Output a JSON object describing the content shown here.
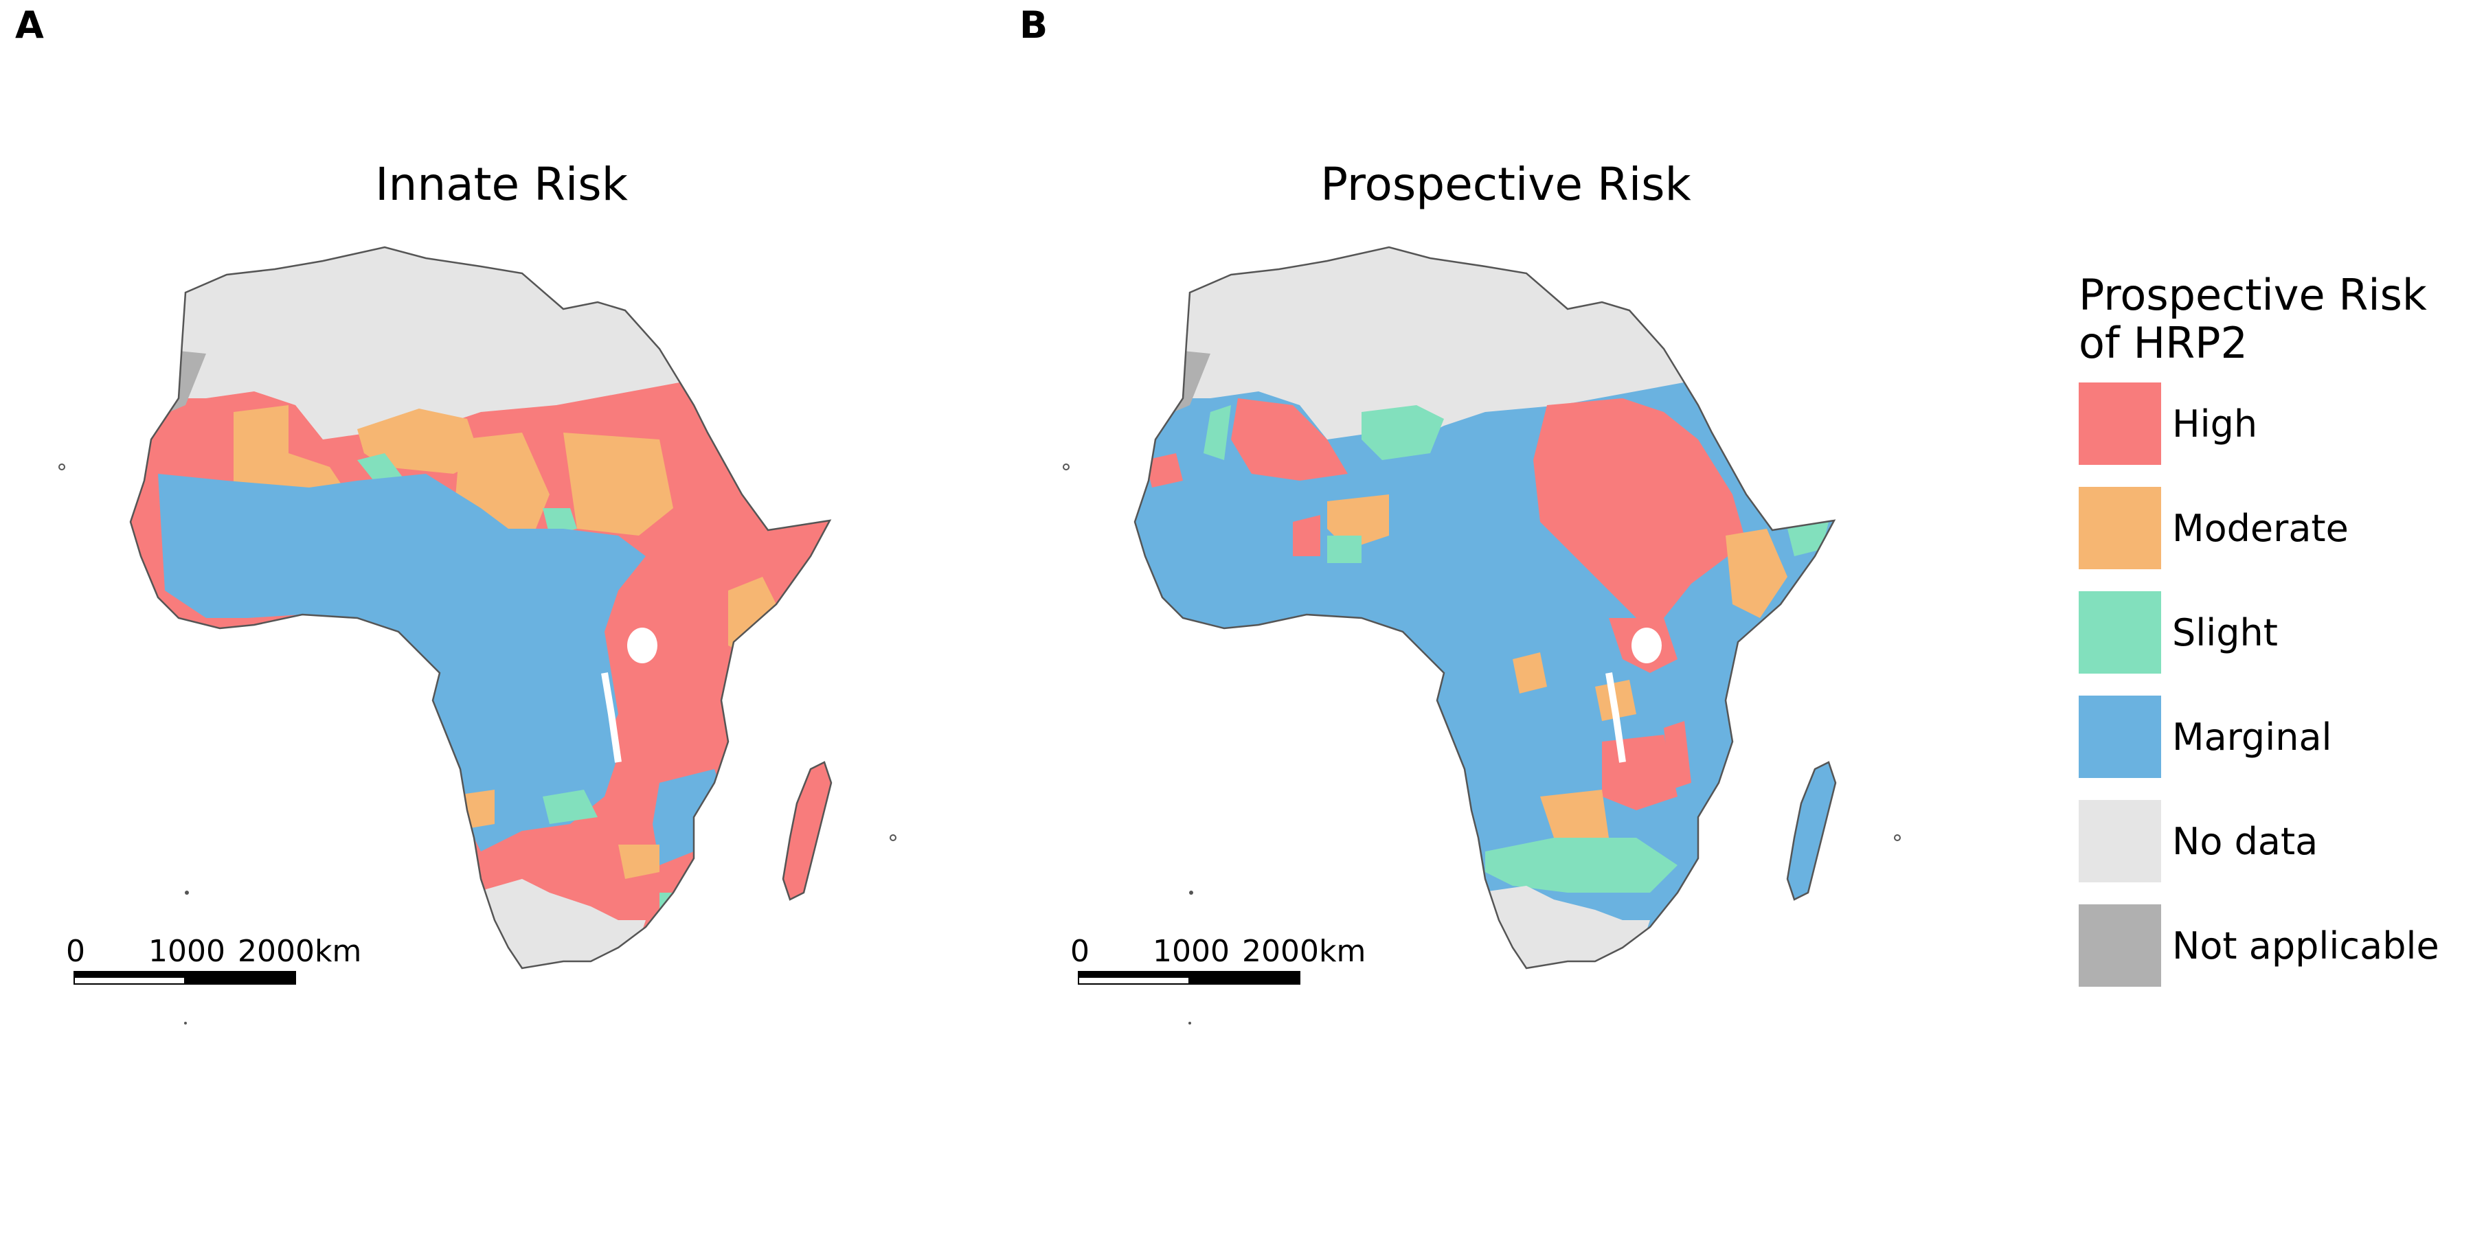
{
  "panels": [
    {
      "tag": "A",
      "title": "Innate Risk"
    },
    {
      "tag": "B",
      "title": "Prospective Risk"
    }
  ],
  "scale_bar": {
    "labels": [
      "0",
      "1000",
      "2000km"
    ]
  },
  "legend": {
    "title_line1": "Prospective Risk",
    "title_line2": "of HRP2",
    "items": [
      {
        "label": "High",
        "color": "#f87c7c"
      },
      {
        "label": "Moderate",
        "color": "#f6b672"
      },
      {
        "label": "Slight",
        "color": "#82e0bd"
      },
      {
        "label": "Marginal",
        "color": "#6ab2e0"
      },
      {
        "label": "No data",
        "color": "#e5e5e5"
      },
      {
        "label": "Not applicable",
        "color": "#b0b0b0"
      }
    ]
  }
}
